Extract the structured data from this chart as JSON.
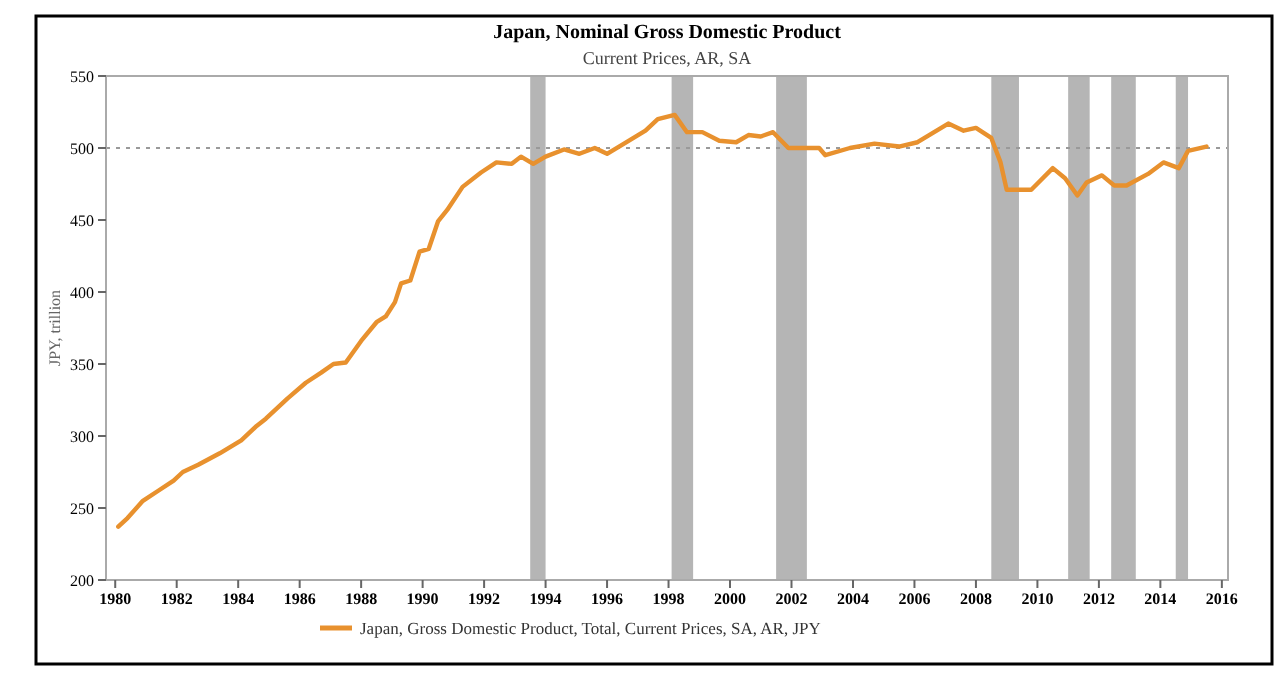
{
  "chart_data": {
    "type": "line",
    "title": "Japan, Nominal Gross Domestic Product",
    "subtitle": "Current Prices, AR, SA",
    "ylabel": "JPY, trillion",
    "xlim": [
      1979.7,
      2016.2
    ],
    "xticks": [
      1980,
      1982,
      1984,
      1986,
      1988,
      1990,
      1992,
      1994,
      1996,
      1998,
      2000,
      2002,
      2004,
      2006,
      2008,
      2010,
      2012,
      2014,
      2016
    ],
    "ylim": [
      200,
      550
    ],
    "yticks": [
      200,
      250,
      300,
      350,
      400,
      450,
      500,
      550
    ],
    "grid": false,
    "legend": "bottom",
    "line_style": "solid",
    "marker": "none",
    "ref_lines": [
      {
        "axis": "y",
        "value": 500,
        "line_style": "dotted",
        "color": "#999999"
      }
    ],
    "bands": [
      {
        "axis": "x",
        "from": 1993.5,
        "to": 1994.0,
        "color": "#b5b5b5"
      },
      {
        "axis": "x",
        "from": 1998.1,
        "to": 1998.8,
        "color": "#b5b5b5"
      },
      {
        "axis": "x",
        "from": 2001.5,
        "to": 2002.5,
        "color": "#b5b5b5"
      },
      {
        "axis": "x",
        "from": 2008.5,
        "to": 2009.4,
        "color": "#b5b5b5"
      },
      {
        "axis": "x",
        "from": 2011.0,
        "to": 2011.7,
        "color": "#b5b5b5"
      },
      {
        "axis": "x",
        "from": 2012.4,
        "to": 2013.2,
        "color": "#b5b5b5"
      },
      {
        "axis": "x",
        "from": 2014.5,
        "to": 2014.9,
        "color": "#b5b5b5"
      }
    ],
    "series": [
      {
        "name": "Japan, Gross Domestic Product, Total, Current Prices, SA, AR, JPY",
        "color": "#e8912e",
        "x": [
          1980.1,
          1980.4,
          1980.9,
          1981.4,
          1981.9,
          1982.2,
          1982.7,
          1983.4,
          1984.1,
          1984.6,
          1984.9,
          1985.6,
          1986.2,
          1986.7,
          1987.1,
          1987.5,
          1988.0,
          1988.5,
          1988.8,
          1989.1,
          1989.3,
          1989.6,
          1989.9,
          1990.2,
          1990.5,
          1990.8,
          1991.3,
          1991.9,
          1992.4,
          1992.9,
          1993.2,
          1993.6,
          1994.0,
          1994.6,
          1995.1,
          1995.6,
          1996.0,
          1996.7,
          1997.25,
          1997.65,
          1998.2,
          1998.6,
          1999.1,
          1999.65,
          2000.2,
          2000.6,
          2001.0,
          2001.4,
          2001.9,
          2002.9,
          2003.1,
          2003.9,
          2004.7,
          2005.5,
          2006.1,
          2007.1,
          2007.6,
          2008.0,
          2008.5,
          2008.8,
          2009.0,
          2009.3,
          2009.8,
          2010.5,
          2010.9,
          2011.3,
          2011.6,
          2012.1,
          2012.5,
          2012.9,
          2013.6,
          2014.1,
          2014.6,
          2014.9,
          2015.5
        ],
        "values": [
          237,
          243,
          255,
          262,
          269,
          275,
          280,
          288,
          297,
          307,
          312,
          326,
          337,
          344,
          350,
          351,
          366,
          379,
          383,
          393,
          406,
          408,
          428,
          430,
          449,
          457,
          473,
          483,
          490,
          489,
          494,
          489,
          494,
          499,
          496,
          500,
          496,
          505,
          512,
          520,
          523,
          511,
          511,
          505,
          504,
          509,
          508,
          511,
          500,
          500,
          495,
          500,
          503,
          501,
          504,
          517,
          512,
          514,
          507,
          490,
          471,
          471,
          471,
          486,
          479,
          467,
          476,
          481,
          474,
          474,
          482,
          490,
          486,
          498,
          501
        ]
      }
    ]
  }
}
